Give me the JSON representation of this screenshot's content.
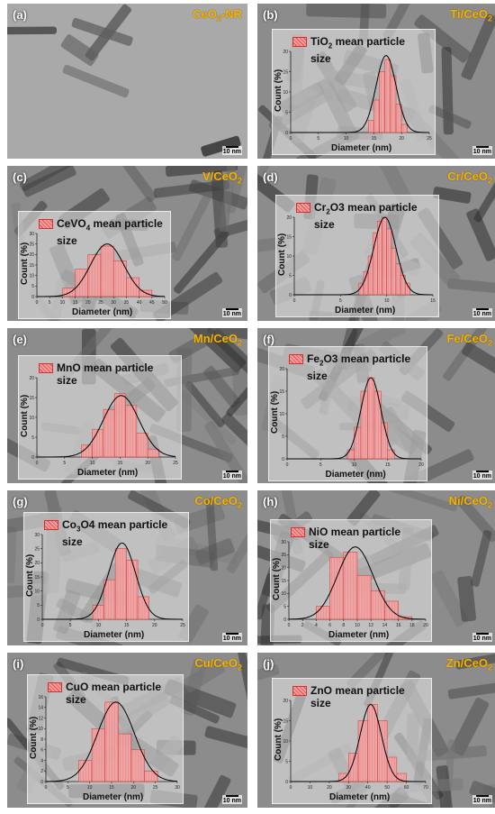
{
  "panels": [
    {
      "label": "(a)",
      "sample": "CeO",
      "sub": "2",
      "suffix": "-NR",
      "scale": "10 nm",
      "chart": null
    },
    {
      "label": "(b)",
      "sample": "Ti/CeO",
      "sub": "2",
      "suffix": "",
      "scale": "10 nm",
      "chart": {
        "legend": "TiO",
        "legend_sub": "2",
        "legend_suffix": " mean particle size",
        "xlabel": "Diameter (nm)",
        "ylabel": "Count (%)"
      }
    },
    {
      "label": "(c)",
      "sample": "V/CeO",
      "sub": "2",
      "suffix": "",
      "scale": "10 nm",
      "chart": {
        "legend": "CeVO",
        "legend_sub": "4",
        "legend_suffix": " mean particle size",
        "xlabel": "Diameter (nm)",
        "ylabel": "Count (%)"
      }
    },
    {
      "label": "(d)",
      "sample": "Cr/CeO",
      "sub": "2",
      "suffix": "",
      "scale": "10 nm",
      "chart": {
        "legend": "Cr",
        "legend_sub": "2",
        "legend_suffix": "O3 mean particle size",
        "xlabel": "Diameter (nm)",
        "ylabel": "Count (%)"
      }
    },
    {
      "label": "(e)",
      "sample": "Mn/CeO",
      "sub": "2",
      "suffix": "",
      "scale": "10 nm",
      "chart": {
        "legend": "MnO",
        "legend_sub": "",
        "legend_suffix": " mean particle size",
        "xlabel": "Diameter (nm)",
        "ylabel": "Count (%)"
      }
    },
    {
      "label": "(f)",
      "sample": "Fe/CeO",
      "sub": "2",
      "suffix": "",
      "scale": "10 nm",
      "chart": {
        "legend": "Fe",
        "legend_sub": "2",
        "legend_suffix": "O3 mean particle size",
        "xlabel": "Diameter (nm)",
        "ylabel": "Count (%)"
      }
    },
    {
      "label": "(g)",
      "sample": "Co/CeO",
      "sub": "2",
      "suffix": "",
      "scale": "10 nm",
      "chart": {
        "legend": "Co",
        "legend_sub": "3",
        "legend_suffix": "O4 mean particle size",
        "xlabel": "Diameter (nm)",
        "ylabel": "Count (%)"
      }
    },
    {
      "label": "(h)",
      "sample": "Ni/CeO",
      "sub": "2",
      "suffix": "",
      "scale": "10 nm",
      "chart": {
        "legend": "NiO",
        "legend_sub": "",
        "legend_suffix": " mean particle size",
        "xlabel": "Diameter (nm)",
        "ylabel": "Count (%)"
      }
    },
    {
      "label": "(i)",
      "sample": "Cu/CeO",
      "sub": "2",
      "suffix": "",
      "scale": "10 nm",
      "chart": {
        "legend": "CuO",
        "legend_sub": "",
        "legend_suffix": " mean particle size",
        "xlabel": "Diameter (nm)",
        "ylabel": "Count (%)"
      }
    },
    {
      "label": "(j)",
      "sample": "Zn/CeO",
      "sub": "2",
      "suffix": "",
      "scale": "10 nm",
      "chart": {
        "legend": "ZnO",
        "legend_sub": "",
        "legend_suffix": " mean particle size",
        "xlabel": "Diameter (nm)",
        "ylabel": "Count (%)"
      }
    }
  ],
  "chart_data": [
    {
      "panel": "(b)",
      "type": "bar",
      "xlabel": "Diameter (nm)",
      "ylabel": "Count (%)",
      "xlim": [
        0,
        25
      ],
      "ylim": [
        0,
        20
      ],
      "xticks": [
        0,
        5,
        10,
        15,
        20,
        25
      ],
      "yticks": [
        0,
        5,
        10,
        15,
        20
      ],
      "x": [
        14.5,
        15.5,
        16.5,
        17.5,
        18.5,
        19.5,
        20.5
      ],
      "values": [
        3,
        8,
        15,
        18,
        14,
        7,
        2
      ],
      "fit_mean": 17.2,
      "fit_sd": 1.8,
      "fit_peak": 19
    },
    {
      "panel": "(c)",
      "type": "bar",
      "xlabel": "Diameter (nm)",
      "ylabel": "Count (%)",
      "xlim": [
        0,
        50
      ],
      "ylim": [
        0,
        30
      ],
      "xticks": [
        0,
        5,
        10,
        15,
        20,
        25,
        30,
        35,
        40,
        45,
        50
      ],
      "yticks": [
        0,
        5,
        10,
        15,
        20,
        25,
        30
      ],
      "x": [
        12.5,
        17.5,
        22.5,
        27.5,
        32.5,
        37.5,
        42.5
      ],
      "values": [
        4,
        13,
        20,
        24,
        17,
        9,
        3
      ],
      "fit_mean": 27.5,
      "fit_sd": 6.5,
      "fit_peak": 25
    },
    {
      "panel": "(d)",
      "type": "bar",
      "xlabel": "Diameter (nm)",
      "ylabel": "Count (%)",
      "xlim": [
        0,
        15
      ],
      "ylim": [
        0,
        20
      ],
      "xticks": [
        0,
        5,
        10,
        15
      ],
      "yticks": [
        0,
        5,
        10,
        15,
        20
      ],
      "x": [
        7.25,
        7.75,
        8.25,
        8.75,
        9.25,
        9.75,
        10.25,
        10.75,
        11.25,
        11.75,
        12.25
      ],
      "values": [
        3,
        6,
        10,
        16,
        19,
        20,
        17,
        12,
        8,
        5,
        3
      ],
      "fit_mean": 9.8,
      "fit_sd": 1.2,
      "fit_peak": 20
    },
    {
      "panel": "(e)",
      "type": "bar",
      "xlabel": "Diameter (nm)",
      "ylabel": "Count (%)",
      "xlim": [
        0,
        25
      ],
      "ylim": [
        0,
        20
      ],
      "xticks": [
        0,
        5,
        10,
        15,
        20,
        25
      ],
      "yticks": [
        0,
        5,
        10,
        15,
        20
      ],
      "x": [
        9,
        11,
        13,
        15,
        17,
        19,
        21
      ],
      "values": [
        3,
        7,
        12,
        16,
        13,
        6,
        2
      ],
      "fit_mean": 15.2,
      "fit_sd": 3.2,
      "fit_peak": 15.5
    },
    {
      "panel": "(f)",
      "type": "bar",
      "xlabel": "Diameter (nm)",
      "ylabel": "Count (%)",
      "xlim": [
        0,
        20
      ],
      "ylim": [
        0,
        20
      ],
      "xticks": [
        0,
        5,
        10,
        15,
        20
      ],
      "yticks": [
        0,
        5,
        10,
        15,
        20
      ],
      "x": [
        9.5,
        10.5,
        11.5,
        12.5,
        13.5,
        14.5,
        15.5
      ],
      "values": [
        2,
        7,
        15,
        18,
        15,
        8,
        2
      ],
      "fit_mean": 12.5,
      "fit_sd": 1.5,
      "fit_peak": 18
    },
    {
      "panel": "(g)",
      "type": "bar",
      "xlabel": "Diameter (nm)",
      "ylabel": "Count (%)",
      "xlim": [
        0,
        25
      ],
      "ylim": [
        0,
        30
      ],
      "xticks": [
        0,
        5,
        10,
        15,
        20,
        25
      ],
      "yticks": [
        0,
        5,
        10,
        15,
        20,
        25,
        30
      ],
      "x": [
        10,
        12,
        14,
        16,
        18
      ],
      "values": [
        5,
        14,
        25,
        21,
        8
      ],
      "fit_mean": 14.2,
      "fit_sd": 2.4,
      "fit_peak": 27
    },
    {
      "panel": "(h)",
      "type": "bar",
      "xlabel": "Diameter (nm)",
      "ylabel": "Count (%)",
      "xlim": [
        0,
        20
      ],
      "ylim": [
        0,
        30
      ],
      "xticks": [
        0,
        2,
        4,
        6,
        8,
        10,
        12,
        14,
        16,
        18,
        20
      ],
      "yticks": [
        0,
        5,
        10,
        15,
        20,
        25,
        30
      ],
      "x": [
        5,
        7,
        9,
        11,
        13,
        15,
        17
      ],
      "values": [
        5,
        24,
        26,
        17,
        11,
        7,
        1
      ],
      "fit_mean": 9.7,
      "fit_sd": 2.6,
      "fit_peak": 28
    },
    {
      "panel": "(i)",
      "type": "bar",
      "xlabel": "Diameter (nm)",
      "ylabel": "Count (%)",
      "xlim": [
        0,
        30
      ],
      "ylim": [
        0,
        16
      ],
      "xticks": [
        0,
        5,
        10,
        15,
        20,
        25,
        30
      ],
      "yticks": [
        0,
        2,
        4,
        6,
        8,
        10,
        12,
        14,
        16
      ],
      "x": [
        9,
        12,
        15,
        18,
        21,
        24
      ],
      "values": [
        4,
        10,
        15,
        9,
        6,
        2
      ],
      "fit_mean": 16,
      "fit_sd": 4.2,
      "fit_peak": 15
    },
    {
      "panel": "(j)",
      "type": "bar",
      "xlabel": "Diameter (nm)",
      "ylabel": "Count (%)",
      "xlim": [
        0,
        70
      ],
      "ylim": [
        0,
        20
      ],
      "xticks": [
        0,
        10,
        20,
        30,
        40,
        50,
        60,
        70
      ],
      "yticks": [
        0,
        5,
        10,
        15,
        20
      ],
      "x": [
        27.5,
        32.5,
        37.5,
        42.5,
        47.5,
        52.5,
        57.5
      ],
      "values": [
        2,
        7,
        15,
        19,
        15,
        6,
        2
      ],
      "fit_mean": 41.5,
      "fit_sd": 5.5,
      "fit_peak": 19
    }
  ],
  "colors": {
    "bar_fill": "#f4a3a3",
    "bar_stroke": "#d43a3a",
    "fit_line": "#000000",
    "sample_label": "#f5b400"
  }
}
